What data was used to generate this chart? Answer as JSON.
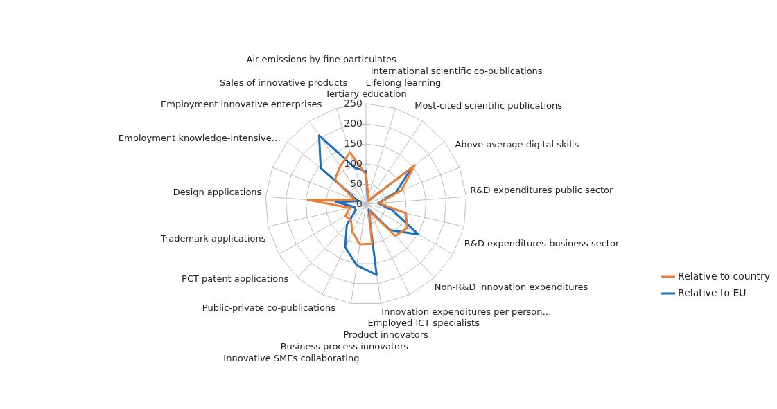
{
  "chart_data": {
    "type": "radar",
    "categories": [
      "Tertiary education",
      "Lifelong learning",
      "International scientific co-publications",
      "Most-cited scientific publications",
      "Above average digital skills",
      "R&D expenditures public sector",
      "R&D expenditures business sector",
      "Non-R&D innovation expenditures",
      "Innovation expenditures per person…",
      "Employed ICT specialists",
      "Product innovators",
      "Business process innovators",
      "Innovative SMEs collaborating",
      "Public-private co-publications",
      "PCT patent applications",
      "Trademark applications",
      "Design applications",
      "Employment knowledge-intensive…",
      "Employment innovative enterprises",
      "Sales of innovative products",
      "Air emissions by fine particulates"
    ],
    "series": [
      {
        "name": "Relative to country",
        "color": "#ed7d31",
        "values": [
          73,
          20,
          10,
          155,
          95,
          33,
          102,
          118,
          108,
          20,
          100,
          101,
          77,
          55,
          59,
          41,
          145,
          30,
          99,
          114,
          135
        ]
      },
      {
        "name": "Relative to EU",
        "color": "#1b6ec2",
        "values": [
          82,
          15,
          10,
          146,
          80,
          30,
          67,
          151,
          88,
          15,
          178,
          154,
          119,
          70,
          29,
          30,
          75,
          20,
          144,
          207,
          95
        ]
      }
    ],
    "ylim": [
      0,
      250
    ],
    "yticks": [
      0,
      50,
      100,
      150,
      200,
      250
    ],
    "grid": true,
    "legend": "bottom right",
    "marker": "none",
    "line_style": "solid"
  }
}
